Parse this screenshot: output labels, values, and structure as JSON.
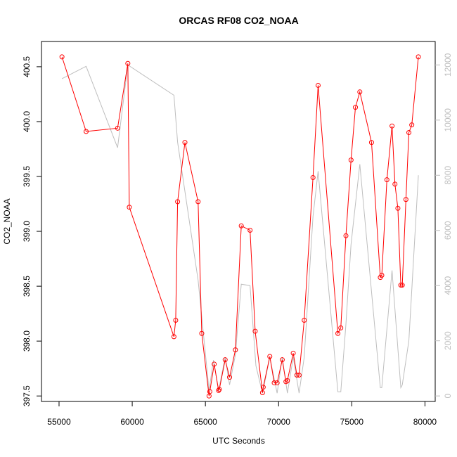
{
  "chart_data": {
    "type": "line",
    "title": "ORCAS RF08 CO2_NOAA",
    "xlabel": "UTC Seconds",
    "ylabel": "CO2_NOAA",
    "xlim": [
      53800,
      80700
    ],
    "ylim": [
      397.45,
      400.73
    ],
    "xticks": [
      55000,
      60000,
      65000,
      70000,
      75000,
      80000
    ],
    "yticks": [
      397.5,
      398.0,
      398.5,
      399.0,
      399.5,
      400.0,
      400.5
    ],
    "y2lim": [
      -200,
      12850
    ],
    "y2ticks": [
      0,
      2000,
      4000,
      6000,
      8000,
      10000,
      12000
    ],
    "series": [
      {
        "color": "#ff0000",
        "axis": "left",
        "markers": "open-circle",
        "x": [
          55200,
          56850,
          59000,
          59700,
          59800,
          62850,
          62970,
          63100,
          63600,
          64500,
          64750,
          65250,
          65300,
          65600,
          65900,
          65950,
          66350,
          66650,
          67050,
          67450,
          68050,
          68400,
          68900,
          68950,
          69400,
          69700,
          69900,
          70250,
          70500,
          70600,
          71000,
          71250,
          71400,
          71750,
          72350,
          72700,
          74050,
          74250,
          74600,
          74950,
          75250,
          75550,
          76350,
          76950,
          77050,
          77400,
          77750,
          77950,
          78150,
          78350,
          78450,
          78700,
          78900,
          79100,
          79550
        ],
        "y": [
          400.59,
          399.91,
          399.94,
          400.53,
          399.22,
          398.04,
          398.19,
          399.27,
          399.81,
          399.27,
          398.07,
          397.5,
          397.54,
          397.79,
          397.55,
          397.56,
          397.83,
          397.67,
          397.92,
          399.05,
          399.01,
          398.09,
          397.53,
          397.58,
          397.86,
          397.62,
          397.62,
          397.83,
          397.63,
          397.64,
          397.89,
          397.69,
          397.69,
          398.19,
          399.49,
          400.33,
          398.07,
          398.12,
          398.96,
          399.65,
          400.13,
          400.27,
          399.81,
          398.58,
          398.6,
          399.47,
          399.96,
          399.43,
          399.21,
          398.51,
          398.51,
          399.29,
          399.9,
          399.97,
          400.59
        ]
      },
      {
        "color": "#bebebe",
        "axis": "right",
        "markers": "none",
        "x": [
          55200,
          56850,
          59000,
          59700,
          62850,
          63100,
          64500,
          65250,
          65550,
          65900,
          66350,
          66650,
          67050,
          67450,
          68050,
          68450,
          68900,
          69400,
          69900,
          70250,
          70600,
          71000,
          71400,
          71750,
          72350,
          72700,
          74050,
          74250,
          74600,
          74950,
          75550,
          76950,
          77050,
          77750,
          78350,
          78450,
          78900,
          79550
        ],
        "y": [
          11500,
          11950,
          9000,
          12000,
          10900,
          9200,
          4200,
          200,
          1300,
          200,
          1400,
          400,
          1500,
          4050,
          4000,
          1100,
          100,
          1400,
          100,
          1400,
          100,
          1400,
          100,
          1400,
          6500,
          8150,
          150,
          150,
          2600,
          5500,
          8400,
          300,
          300,
          4550,
          300,
          400,
          2000,
          8000
        ]
      }
    ]
  }
}
